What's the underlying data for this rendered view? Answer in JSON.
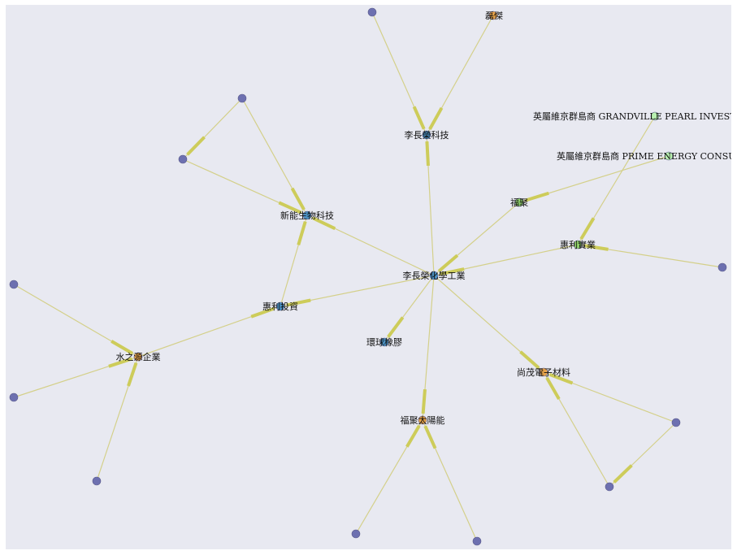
{
  "colors": {
    "background": "#e8e9f1",
    "edge": "#d4d08a",
    "arrow": "#cdcc5a",
    "center": "#4a8fc0",
    "company": "#4a8fc0",
    "orange": "#e6a24a",
    "green": "#8fd06a",
    "lightgreen": "#b8f0b0",
    "leaf": "#6d70b0"
  },
  "nodes": [
    {
      "id": "center",
      "label": "李長榮化學工業",
      "color": "center"
    },
    {
      "id": "tech",
      "label": "李長榮科技",
      "color": "company"
    },
    {
      "id": "bio",
      "label": "新能生物科技",
      "color": "company"
    },
    {
      "id": "invest",
      "label": "惠利投資",
      "color": "company"
    },
    {
      "id": "rubber",
      "label": "環球橡膠",
      "color": "company"
    },
    {
      "id": "solar",
      "label": "福聚太陽能",
      "color": "orange"
    },
    {
      "id": "elec",
      "label": "尚茂電子材料",
      "color": "orange"
    },
    {
      "id": "water",
      "label": "水之源企業",
      "color": "orange"
    },
    {
      "id": "fuju",
      "label": "福聚",
      "color": "green"
    },
    {
      "id": "huili",
      "label": "惠利實業",
      "color": "green"
    },
    {
      "id": "gran",
      "label": "英屬維京群島商 GRANDVILLE PEARL INVESTMEN",
      "color": "lightgreen"
    },
    {
      "id": "prime",
      "label": "英屬維京群島商 PRIME ENERGY CONSULTA",
      "color": "lightgreen"
    },
    {
      "id": "top",
      "label": "磊傑",
      "color": "orange"
    },
    {
      "id": "l1",
      "label": "",
      "color": "leaf"
    },
    {
      "id": "l2",
      "label": "",
      "color": "leaf"
    },
    {
      "id": "l3",
      "label": "",
      "color": "leaf"
    },
    {
      "id": "l4",
      "label": "",
      "color": "leaf"
    },
    {
      "id": "l5",
      "label": "",
      "color": "leaf"
    },
    {
      "id": "l6",
      "label": "",
      "color": "leaf"
    },
    {
      "id": "l7",
      "label": "",
      "color": "leaf"
    },
    {
      "id": "l8",
      "label": "",
      "color": "leaf"
    },
    {
      "id": "l9",
      "label": "",
      "color": "leaf"
    },
    {
      "id": "l10",
      "label": "",
      "color": "leaf"
    },
    {
      "id": "l11",
      "label": "",
      "color": "leaf"
    },
    {
      "id": "l12",
      "label": "",
      "color": "leaf"
    }
  ],
  "edges": [
    {
      "from": "center",
      "to": "tech"
    },
    {
      "from": "center",
      "to": "bio"
    },
    {
      "from": "center",
      "to": "invest"
    },
    {
      "from": "center",
      "to": "rubber"
    },
    {
      "from": "center",
      "to": "solar"
    },
    {
      "from": "center",
      "to": "elec"
    },
    {
      "from": "fuju",
      "to": "center"
    },
    {
      "from": "huili",
      "to": "center"
    },
    {
      "from": "top",
      "to": "tech"
    },
    {
      "from": "l1",
      "to": "tech"
    },
    {
      "from": "l2",
      "to": "bio"
    },
    {
      "from": "l3",
      "to": "bio"
    },
    {
      "from": "l2",
      "to": "l3"
    },
    {
      "from": "invest",
      "to": "bio"
    },
    {
      "from": "water",
      "to": "invest"
    },
    {
      "from": "l4",
      "to": "water"
    },
    {
      "from": "l5",
      "to": "water"
    },
    {
      "from": "l6",
      "to": "water"
    },
    {
      "from": "prime",
      "to": "fuju"
    },
    {
      "from": "gran",
      "to": "huili"
    },
    {
      "from": "l7",
      "to": "huili"
    },
    {
      "from": "l8",
      "to": "solar"
    },
    {
      "from": "l9",
      "to": "solar"
    },
    {
      "from": "l10",
      "to": "elec"
    },
    {
      "from": "l11",
      "to": "elec"
    },
    {
      "from": "l10",
      "to": "l11"
    }
  ]
}
